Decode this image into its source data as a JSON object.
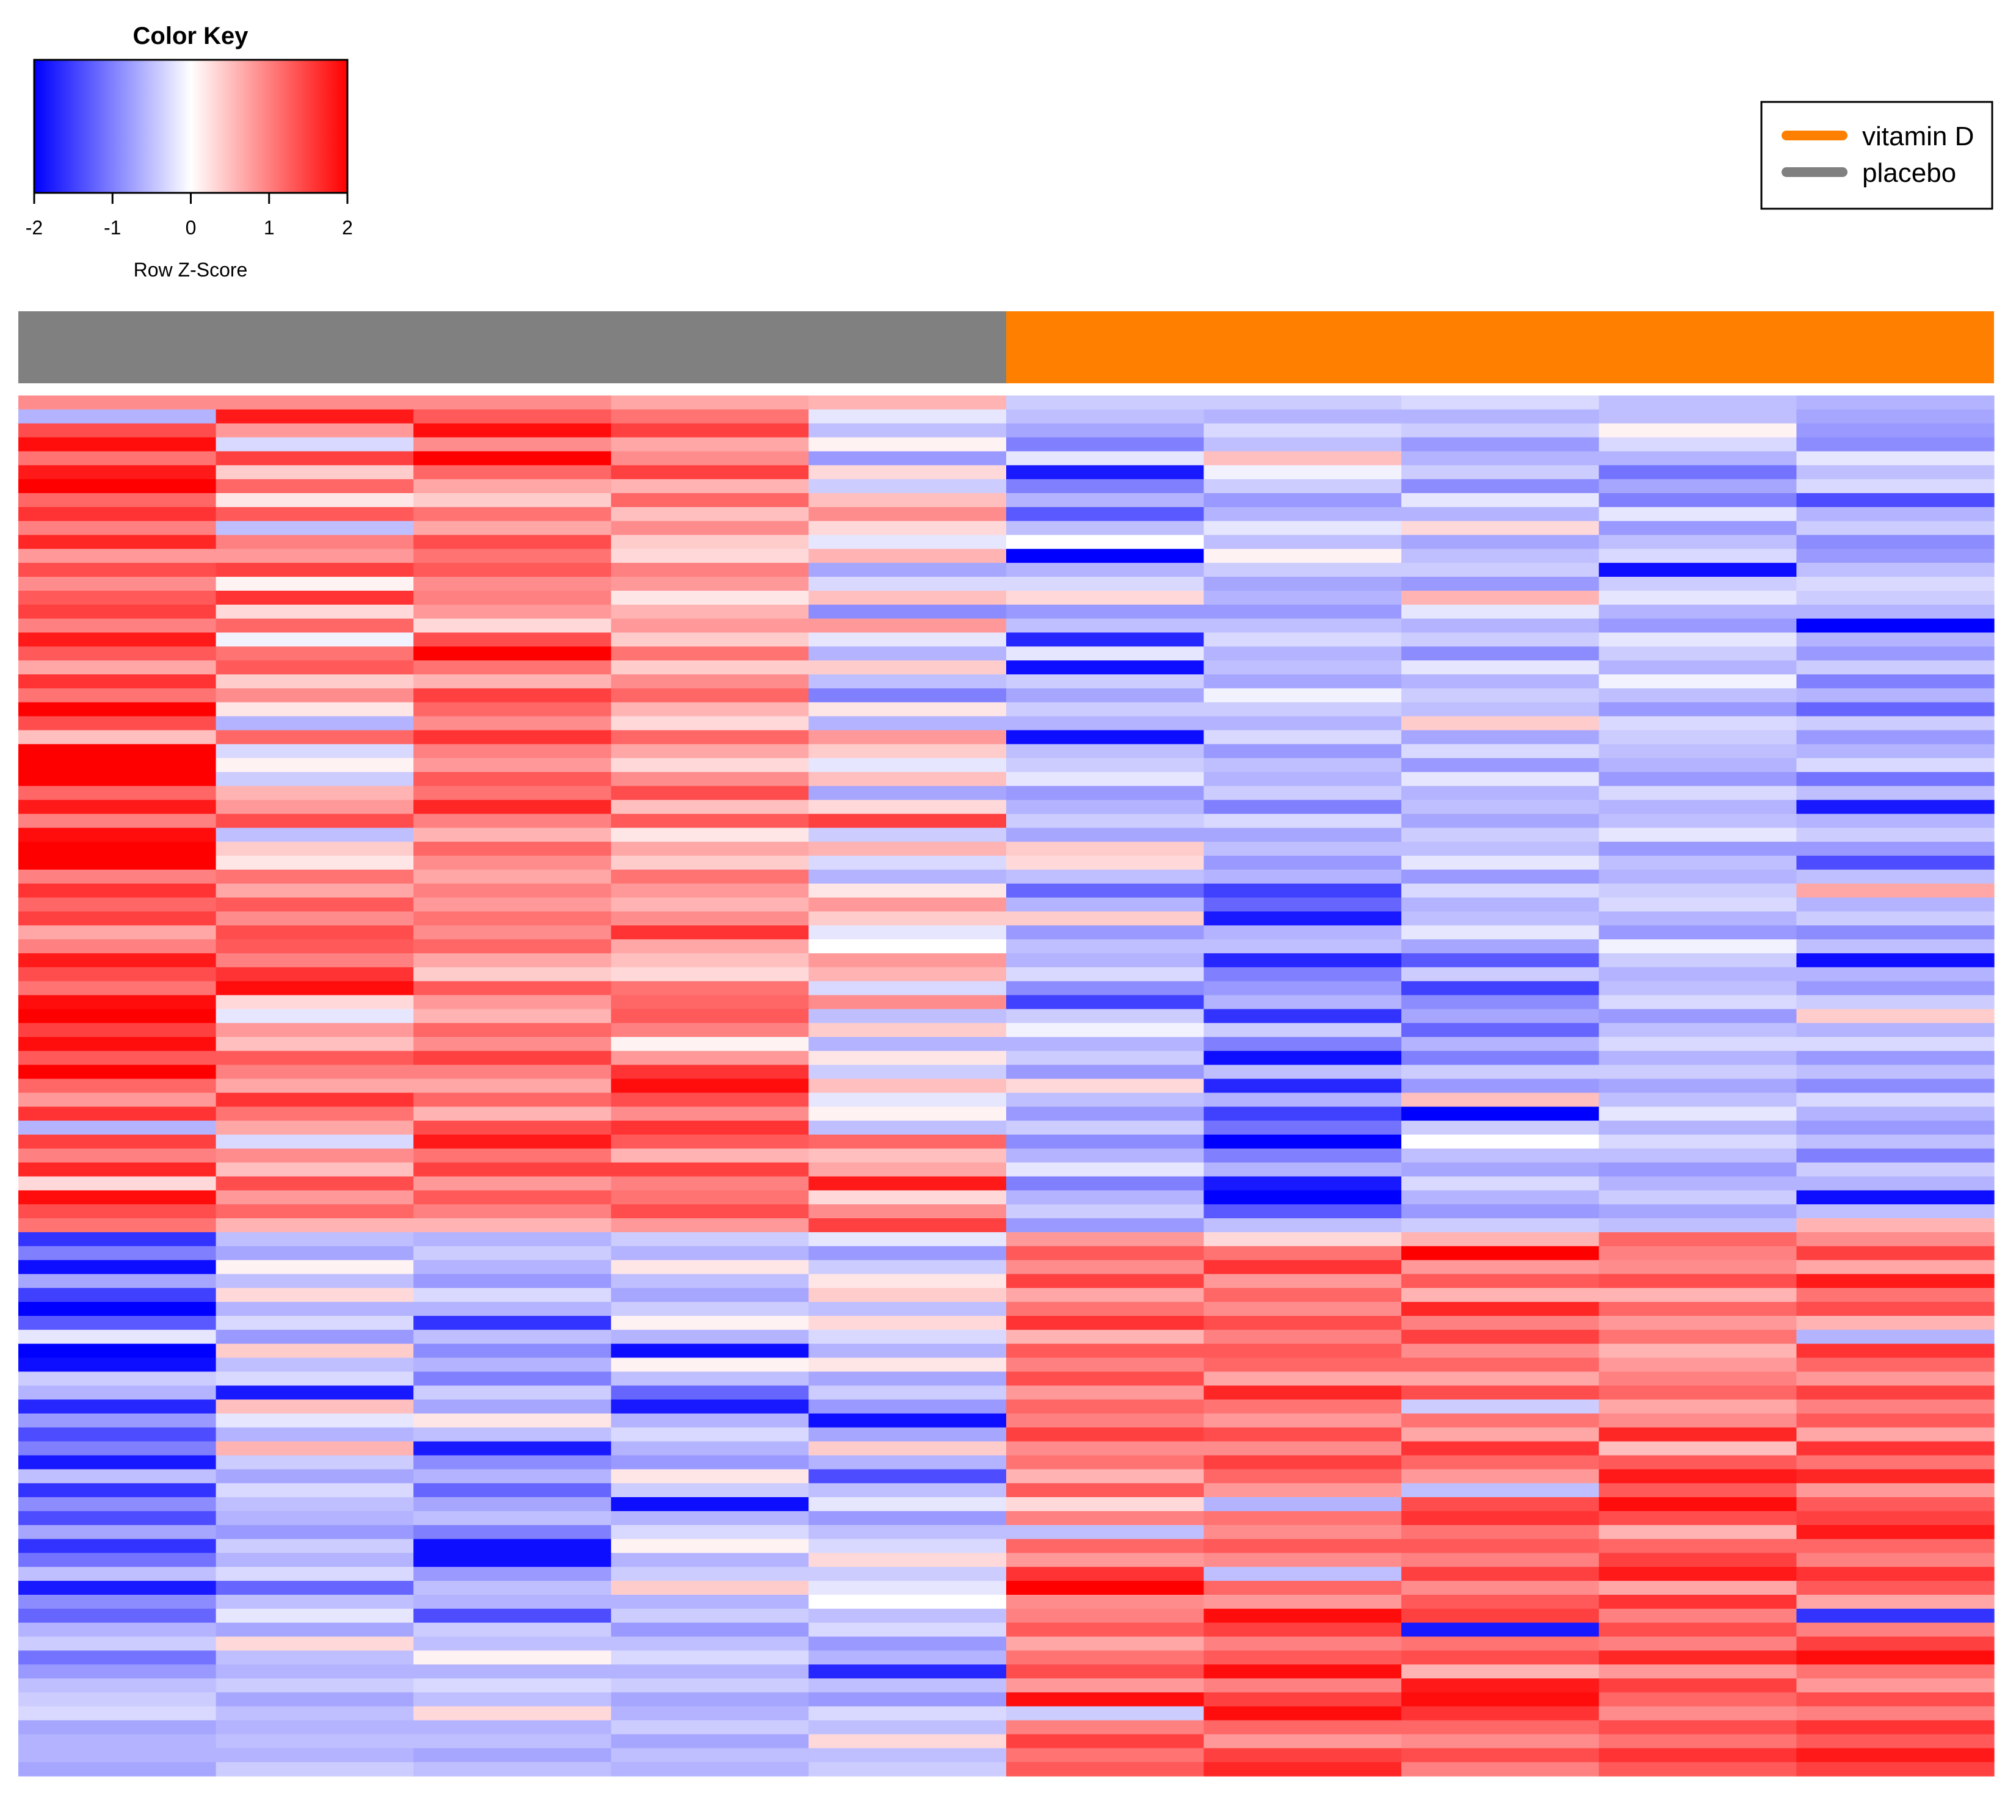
{
  "chart_data": {
    "type": "heatmap",
    "color_key": {
      "title": "Color Key",
      "xlabel": "Row Z-Score",
      "ticks": [
        "-2",
        "-1",
        "0",
        "1",
        "2"
      ],
      "range": [
        -2,
        2
      ],
      "colors": {
        "low": "#0000ff",
        "mid": "#ffffff",
        "high": "#ff0000"
      }
    },
    "legend": {
      "position": "top-right",
      "items": [
        {
          "label": "vitamin D",
          "color": "#ff8000"
        },
        {
          "label": "placebo",
          "color": "#808080"
        }
      ]
    },
    "groups": [
      {
        "name": "placebo",
        "color": "#808080",
        "columns": 5
      },
      {
        "name": "vitamin D",
        "color": "#ff8000",
        "columns": 5
      }
    ],
    "n_columns": 10,
    "n_rows": 100,
    "rows_up_in_placebo": 60,
    "values": [
      [
        0.9,
        0.9,
        0.9,
        0.7,
        0.6,
        -0.4,
        -0.4,
        -0.3,
        -0.5,
        -0.6
      ],
      [
        -0.6,
        1.8,
        1.3,
        1.1,
        -0.2,
        -0.5,
        -0.6,
        -0.6,
        -0.5,
        -0.7
      ],
      [
        1.4,
        0.8,
        1.9,
        1.5,
        -0.5,
        -0.7,
        -0.3,
        -0.4,
        0.1,
        -0.8
      ],
      [
        1.9,
        -0.3,
        0.9,
        0.7,
        0.1,
        -1.0,
        -0.5,
        -0.8,
        -0.3,
        -0.9
      ],
      [
        1.1,
        1.5,
        2.0,
        0.9,
        -0.8,
        -0.2,
        0.5,
        -0.6,
        -0.6,
        -0.2
      ],
      [
        1.8,
        0.4,
        1.2,
        1.5,
        0.3,
        -1.8,
        -0.1,
        -0.4,
        -1.1,
        -0.5
      ],
      [
        2.0,
        1.2,
        0.7,
        0.6,
        -0.4,
        -1.0,
        -0.4,
        -0.9,
        -0.7,
        -0.3
      ],
      [
        1.2,
        0.2,
        0.4,
        1.2,
        0.5,
        -0.6,
        -0.8,
        -0.2,
        -1.0,
        -1.4
      ],
      [
        1.6,
        1.3,
        1.1,
        0.5,
        0.9,
        -1.3,
        -0.6,
        -0.6,
        -0.2,
        -0.6
      ],
      [
        1.0,
        -0.5,
        0.7,
        0.9,
        0.3,
        -0.5,
        -0.2,
        0.3,
        -0.8,
        -0.4
      ],
      [
        1.7,
        1.0,
        1.4,
        0.4,
        -0.2,
        0.0,
        -0.5,
        -0.7,
        -0.5,
        -0.9
      ],
      [
        0.8,
        0.8,
        1.1,
        0.3,
        0.6,
        -2.0,
        0.1,
        -0.5,
        -0.3,
        -0.8
      ],
      [
        1.4,
        1.5,
        1.3,
        1.0,
        -0.7,
        -0.6,
        -0.4,
        -0.4,
        -1.9,
        -0.5
      ],
      [
        0.9,
        0.1,
        0.9,
        0.8,
        -0.3,
        -0.3,
        -0.7,
        -0.8,
        -0.4,
        -0.3
      ],
      [
        1.3,
        1.6,
        1.0,
        0.2,
        0.5,
        0.3,
        -0.6,
        0.6,
        -0.2,
        -0.4
      ],
      [
        1.5,
        0.3,
        0.8,
        0.6,
        -0.9,
        -0.8,
        -0.8,
        -0.2,
        -0.6,
        -0.6
      ],
      [
        1.0,
        1.2,
        0.3,
        0.8,
        0.8,
        -0.5,
        -0.5,
        -0.6,
        -0.8,
        -2.0
      ],
      [
        1.8,
        -0.1,
        1.4,
        0.4,
        -0.2,
        -1.7,
        -0.3,
        -0.4,
        -0.2,
        -0.6
      ],
      [
        1.3,
        1.1,
        2.0,
        1.1,
        -0.6,
        -0.2,
        -0.6,
        -0.9,
        -0.4,
        -0.8
      ],
      [
        0.7,
        1.3,
        1.1,
        0.4,
        0.4,
        -1.9,
        -0.5,
        -0.2,
        -0.6,
        -0.4
      ],
      [
        1.6,
        0.4,
        0.6,
        0.9,
        -0.5,
        -0.4,
        -0.7,
        -0.6,
        -0.1,
        -1.0
      ],
      [
        1.1,
        0.9,
        1.5,
        1.2,
        -1.0,
        -0.7,
        -0.1,
        -0.4,
        -0.5,
        -0.6
      ],
      [
        2.0,
        0.2,
        1.2,
        0.6,
        0.2,
        -0.4,
        -0.4,
        -0.5,
        -0.8,
        -1.2
      ],
      [
        1.4,
        -0.6,
        0.9,
        0.3,
        -0.6,
        -0.6,
        -0.6,
        0.4,
        -0.3,
        -0.4
      ],
      [
        0.5,
        1.2,
        1.6,
        1.2,
        0.8,
        -1.9,
        -0.3,
        -0.7,
        -0.4,
        -0.8
      ],
      [
        2.0,
        -0.3,
        1.0,
        0.7,
        0.4,
        -0.5,
        -0.8,
        -0.3,
        -0.5,
        -0.6
      ],
      [
        2.0,
        0.1,
        0.8,
        0.3,
        -0.2,
        -0.4,
        -0.5,
        -0.8,
        -0.6,
        -0.3
      ],
      [
        2.0,
        -0.4,
        1.3,
        0.9,
        0.5,
        -0.2,
        -0.6,
        -0.2,
        -0.8,
        -1.1
      ],
      [
        1.2,
        0.6,
        1.1,
        1.4,
        -0.7,
        -0.8,
        -0.4,
        -0.6,
        -0.3,
        -0.5
      ],
      [
        1.8,
        0.8,
        1.7,
        0.5,
        0.3,
        -0.6,
        -1.0,
        -0.5,
        -0.6,
        -1.8
      ],
      [
        1.0,
        1.4,
        1.0,
        1.3,
        1.5,
        -0.4,
        -0.3,
        -0.7,
        -0.5,
        -0.6
      ],
      [
        1.9,
        -0.5,
        0.6,
        0.2,
        -0.4,
        -0.7,
        -0.7,
        -0.4,
        -0.2,
        -0.4
      ],
      [
        2.0,
        0.4,
        1.2,
        0.7,
        0.6,
        0.4,
        -0.5,
        -0.5,
        -0.8,
        -0.8
      ],
      [
        2.0,
        0.2,
        0.9,
        0.4,
        -0.3,
        0.3,
        -0.8,
        -0.2,
        -0.5,
        -1.4
      ],
      [
        1.0,
        1.1,
        0.7,
        1.1,
        -0.6,
        -0.5,
        -0.6,
        -0.8,
        -0.6,
        -0.5
      ],
      [
        1.6,
        0.7,
        1.0,
        0.8,
        0.2,
        -1.2,
        -1.5,
        -0.3,
        -0.4,
        0.7
      ],
      [
        1.2,
        1.3,
        0.8,
        0.6,
        0.8,
        -0.6,
        -1.2,
        -0.6,
        -0.3,
        -0.6
      ],
      [
        1.5,
        0.9,
        1.1,
        0.9,
        0.4,
        0.4,
        -1.8,
        -0.5,
        -0.6,
        -0.4
      ],
      [
        0.7,
        1.4,
        0.9,
        1.6,
        -0.2,
        -0.8,
        -0.6,
        -0.2,
        -0.8,
        -0.9
      ],
      [
        1.0,
        1.3,
        1.2,
        0.7,
        0.0,
        -0.5,
        -0.5,
        -0.7,
        -0.1,
        -0.5
      ],
      [
        1.8,
        1.0,
        0.7,
        0.5,
        0.8,
        -0.6,
        -1.7,
        -1.3,
        -0.4,
        -1.9
      ],
      [
        1.4,
        1.6,
        0.4,
        0.3,
        0.6,
        -0.3,
        -1.0,
        -0.4,
        -0.6,
        -0.6
      ],
      [
        1.1,
        1.9,
        1.3,
        1.1,
        -0.3,
        -0.9,
        -0.8,
        -1.5,
        -0.5,
        -0.8
      ],
      [
        1.9,
        0.3,
        0.8,
        1.2,
        0.9,
        -1.5,
        -0.6,
        -0.9,
        -0.3,
        -0.4
      ],
      [
        2.0,
        -0.2,
        0.6,
        1.3,
        -0.5,
        -0.4,
        -1.6,
        -0.7,
        -0.8,
        0.4
      ],
      [
        1.5,
        0.8,
        1.2,
        1.0,
        0.4,
        -0.1,
        -0.4,
        -1.2,
        -0.5,
        -0.6
      ],
      [
        1.9,
        0.5,
        0.9,
        0.1,
        -0.6,
        -0.6,
        -1.0,
        -0.6,
        -0.3,
        -0.3
      ],
      [
        1.3,
        1.3,
        1.5,
        0.8,
        0.2,
        -0.4,
        -1.9,
        -1.0,
        -0.6,
        -0.8
      ],
      [
        2.0,
        1.0,
        1.0,
        1.6,
        -0.4,
        -0.8,
        -0.5,
        -0.4,
        -0.4,
        -0.5
      ],
      [
        1.2,
        0.7,
        0.7,
        1.9,
        0.5,
        0.3,
        -1.7,
        -0.8,
        -0.7,
        -0.9
      ],
      [
        0.8,
        1.6,
        1.2,
        1.4,
        -0.2,
        -0.5,
        -0.6,
        0.5,
        -0.5,
        -0.3
      ],
      [
        1.6,
        1.1,
        0.6,
        0.9,
        0.1,
        -0.8,
        -1.5,
        -2.0,
        -0.2,
        -0.6
      ],
      [
        -0.6,
        0.7,
        1.4,
        1.6,
        -0.5,
        -0.4,
        -1.1,
        -0.4,
        -0.6,
        -0.8
      ],
      [
        1.5,
        -0.3,
        1.8,
        1.3,
        1.2,
        -0.9,
        -2.0,
        0.0,
        -0.3,
        -0.5
      ],
      [
        1.0,
        0.9,
        1.1,
        0.6,
        0.5,
        -0.6,
        -1.0,
        -0.5,
        -0.5,
        -1.0
      ],
      [
        1.7,
        0.5,
        1.5,
        1.5,
        0.7,
        -0.2,
        -0.6,
        -0.7,
        -0.8,
        -0.4
      ],
      [
        0.3,
        1.4,
        0.8,
        1.0,
        1.8,
        -1.0,
        -1.8,
        -0.3,
        -0.6,
        -0.6
      ],
      [
        1.9,
        0.8,
        1.3,
        1.1,
        0.3,
        -0.6,
        -2.0,
        -0.6,
        -0.4,
        -1.9
      ],
      [
        1.4,
        1.2,
        1.0,
        1.4,
        0.9,
        -0.4,
        -1.3,
        -0.8,
        -0.7,
        -0.5
      ],
      [
        1.1,
        0.6,
        0.6,
        0.8,
        1.5,
        -0.8,
        -0.5,
        -0.4,
        -0.5,
        0.6
      ],
      [
        -1.6,
        -0.5,
        -0.6,
        -0.4,
        -0.2,
        0.8,
        0.3,
        0.6,
        1.2,
        0.9
      ],
      [
        -1.0,
        -0.7,
        -0.4,
        -0.6,
        -0.8,
        1.3,
        1.1,
        2.0,
        1.0,
        1.5
      ],
      [
        -1.9,
        0.1,
        -0.6,
        0.2,
        -0.4,
        0.9,
        1.6,
        0.8,
        0.9,
        0.7
      ],
      [
        -0.7,
        -0.5,
        -0.8,
        -0.5,
        0.2,
        1.5,
        0.8,
        1.3,
        1.4,
        1.8
      ],
      [
        -1.5,
        0.3,
        -0.3,
        -0.7,
        0.4,
        0.7,
        1.2,
        0.6,
        0.6,
        1.1
      ],
      [
        -2.0,
        -0.6,
        -0.6,
        -0.4,
        -0.5,
        1.1,
        0.9,
        1.7,
        1.2,
        1.4
      ],
      [
        -1.3,
        -0.3,
        -1.6,
        0.1,
        0.3,
        1.6,
        1.4,
        1.0,
        0.8,
        0.6
      ],
      [
        -0.2,
        -0.8,
        -0.5,
        -0.6,
        -0.3,
        0.6,
        1.0,
        1.5,
        1.1,
        -0.6
      ],
      [
        -2.0,
        0.4,
        -0.9,
        -1.9,
        -0.6,
        1.3,
        1.3,
        0.9,
        0.6,
        1.6
      ],
      [
        -1.9,
        -0.5,
        -0.6,
        0.1,
        0.2,
        1.0,
        1.2,
        1.2,
        0.8,
        1.2
      ],
      [
        -0.4,
        -0.3,
        -1.0,
        -0.5,
        -0.7,
        1.4,
        0.7,
        0.7,
        1.0,
        0.8
      ],
      [
        -0.6,
        -1.8,
        -0.4,
        -1.2,
        -0.4,
        0.8,
        1.7,
        1.4,
        1.2,
        1.5
      ],
      [
        -1.7,
        0.5,
        -0.7,
        -1.8,
        -0.8,
        1.2,
        1.1,
        -0.4,
        0.7,
        1.0
      ],
      [
        -0.8,
        -0.2,
        0.2,
        -0.6,
        -1.9,
        1.0,
        0.8,
        1.1,
        0.9,
        1.3
      ],
      [
        -1.4,
        -0.6,
        -0.5,
        -0.3,
        -0.7,
        1.5,
        1.4,
        0.7,
        1.7,
        0.7
      ],
      [
        -1.0,
        0.6,
        -1.8,
        -0.6,
        0.4,
        0.9,
        0.9,
        1.6,
        0.5,
        1.6
      ],
      [
        -1.8,
        -0.4,
        -0.9,
        -0.8,
        -0.6,
        1.1,
        1.5,
        1.2,
        1.3,
        1.1
      ],
      [
        -0.5,
        -0.7,
        -0.6,
        0.2,
        -1.4,
        0.6,
        1.2,
        0.8,
        1.8,
        1.7
      ],
      [
        -1.6,
        -0.3,
        -1.2,
        -0.4,
        -0.5,
        1.3,
        0.8,
        -0.5,
        1.3,
        0.8
      ],
      [
        -0.9,
        -0.5,
        -0.7,
        -1.9,
        -0.2,
        0.3,
        -0.6,
        1.4,
        1.9,
        1.3
      ],
      [
        -1.4,
        -0.6,
        -0.5,
        -0.6,
        -0.8,
        1.0,
        1.1,
        1.6,
        1.4,
        1.5
      ],
      [
        -0.7,
        -0.8,
        -1.0,
        -0.3,
        -0.5,
        -0.5,
        0.9,
        1.1,
        0.6,
        1.8
      ],
      [
        -1.6,
        -0.4,
        -1.9,
        0.1,
        -0.3,
        1.2,
        1.3,
        1.3,
        1.2,
        1.2
      ],
      [
        -1.1,
        -0.6,
        -1.9,
        -0.6,
        0.3,
        0.8,
        0.9,
        1.0,
        1.5,
        1.0
      ],
      [
        -0.5,
        -0.3,
        -0.8,
        -0.4,
        -0.4,
        1.6,
        -0.5,
        1.5,
        1.8,
        1.6
      ],
      [
        -1.8,
        -1.2,
        -0.5,
        0.4,
        -0.2,
        2.0,
        1.2,
        0.9,
        0.7,
        1.3
      ],
      [
        -0.9,
        -0.5,
        -0.6,
        -0.6,
        0.0,
        0.9,
        0.8,
        1.3,
        1.6,
        0.7
      ],
      [
        -1.2,
        -0.2,
        -1.4,
        -0.4,
        -0.5,
        1.0,
        1.9,
        1.5,
        1.0,
        -1.6
      ],
      [
        -0.6,
        -0.7,
        -0.4,
        -0.8,
        -0.3,
        1.3,
        1.5,
        -1.8,
        1.4,
        1.0
      ],
      [
        -0.4,
        0.3,
        -0.5,
        -0.5,
        -0.8,
        0.7,
        1.0,
        1.1,
        1.0,
        1.5
      ],
      [
        -1.1,
        -0.5,
        0.1,
        -0.3,
        -0.6,
        1.1,
        1.3,
        1.4,
        1.7,
        1.9
      ],
      [
        -0.8,
        -0.6,
        -0.6,
        -0.6,
        -1.7,
        1.4,
        1.9,
        0.6,
        0.8,
        1.1
      ],
      [
        -0.5,
        -0.4,
        -0.3,
        -0.4,
        -0.5,
        0.8,
        1.0,
        1.8,
        1.5,
        0.8
      ],
      [
        -0.4,
        -0.7,
        -0.5,
        -0.7,
        -0.8,
        1.9,
        1.5,
        1.9,
        1.2,
        1.4
      ],
      [
        -0.3,
        -0.5,
        0.3,
        -0.6,
        -0.3,
        -0.4,
        1.9,
        1.6,
        0.9,
        1.0
      ],
      [
        -0.7,
        -0.6,
        -0.6,
        -0.4,
        -0.5,
        1.0,
        1.2,
        1.2,
        1.4,
        1.6
      ],
      [
        -0.6,
        -0.5,
        -0.5,
        -0.7,
        0.3,
        1.5,
        0.8,
        0.9,
        1.1,
        1.3
      ],
      [
        -0.6,
        -0.6,
        -0.7,
        -0.5,
        -0.5,
        1.1,
        1.5,
        1.4,
        1.6,
        1.8
      ],
      [
        -0.7,
        -0.4,
        -0.5,
        -0.6,
        -0.4,
        1.3,
        1.7,
        1.0,
        1.3,
        1.5
      ]
    ]
  }
}
